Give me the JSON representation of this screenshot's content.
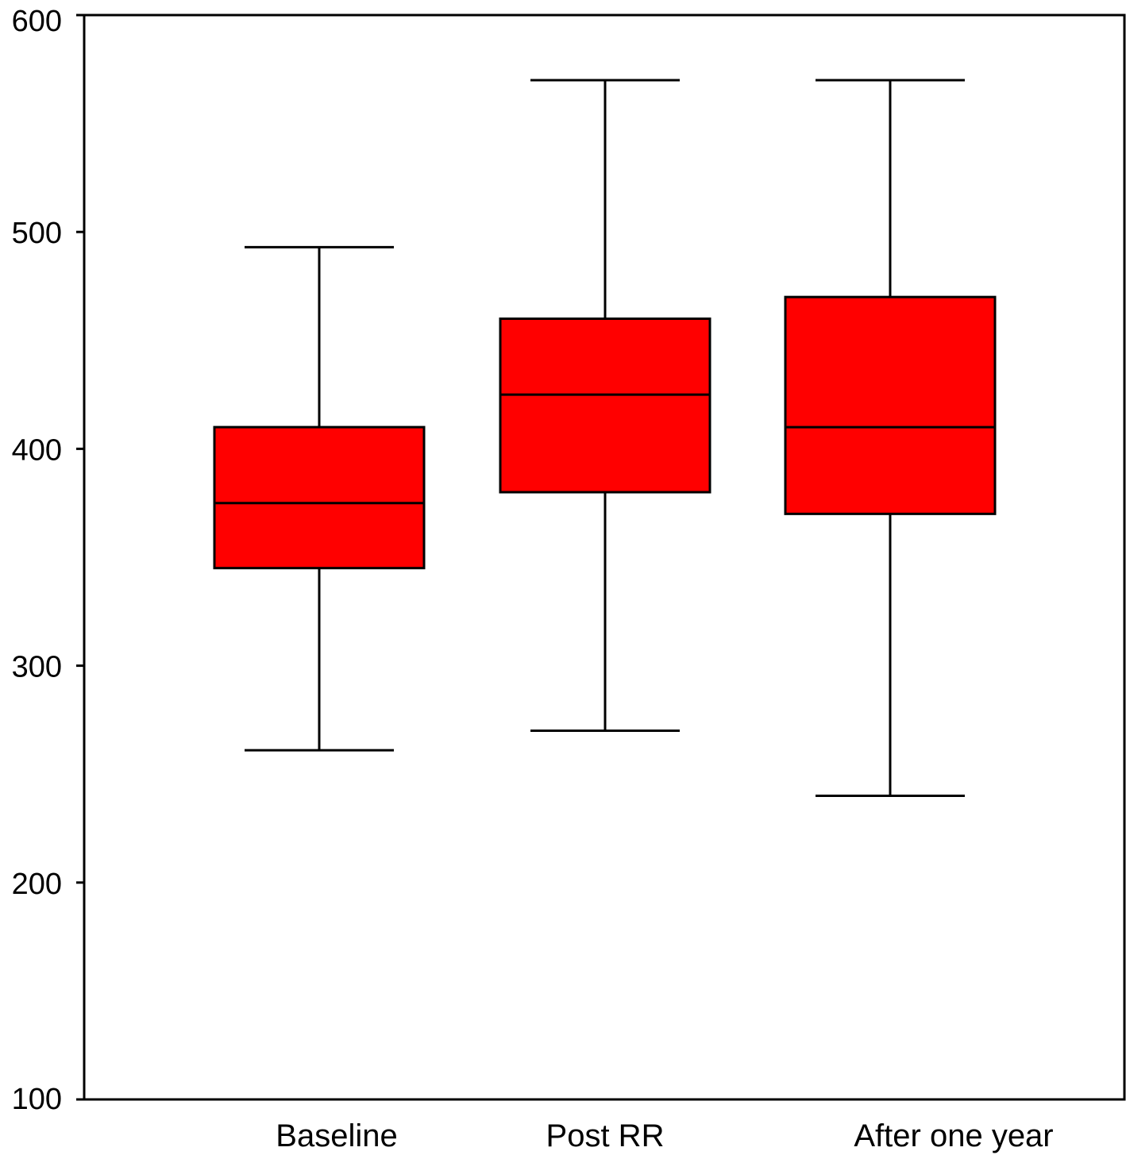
{
  "chart_data": {
    "type": "boxplot",
    "title": "",
    "xlabel": "",
    "ylabel": "",
    "ylim": [
      100,
      600
    ],
    "yticks": [
      100,
      200,
      300,
      400,
      500,
      600
    ],
    "grid": false,
    "legend": "none",
    "box_color": "#ff0000",
    "categories": [
      "Baseline",
      "Post RR",
      "After one year"
    ],
    "boxes": [
      {
        "category": "Baseline",
        "whisker_low": 261,
        "q1": 345,
        "median": 375,
        "q3": 410,
        "whisker_high": 493
      },
      {
        "category": "Post RR",
        "whisker_low": 270,
        "q1": 380,
        "median": 425,
        "q3": 460,
        "whisker_high": 570
      },
      {
        "category": "After one year",
        "whisker_low": 240,
        "q1": 370,
        "median": 410,
        "q3": 470,
        "whisker_high": 570
      }
    ]
  }
}
